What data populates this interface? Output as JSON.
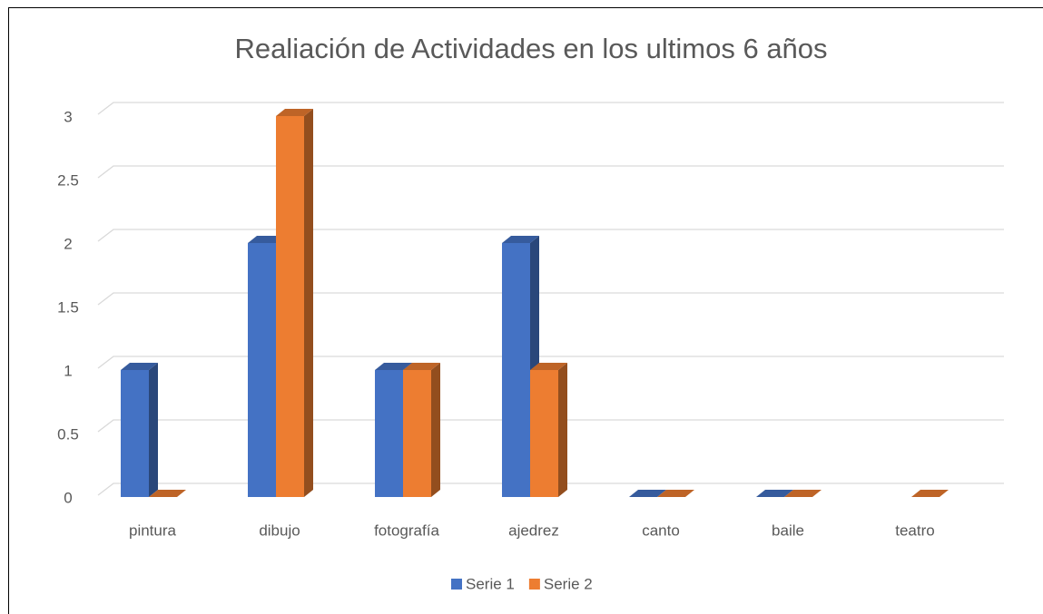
{
  "chart_data": {
    "type": "bar3d",
    "title": "Realiación de Actividades en los ultimos 6 años",
    "categories": [
      "pintura",
      "dibujo",
      "fotografía",
      "ajedrez",
      "canto",
      "baile",
      "teatro"
    ],
    "series": [
      {
        "name": "Serie 1",
        "color": "#4472c4",
        "values": [
          1,
          2,
          1,
          2,
          0,
          0,
          null
        ]
      },
      {
        "name": "Serie 2",
        "color": "#ed7d31",
        "values": [
          0,
          3,
          1,
          1,
          0,
          0,
          0
        ]
      }
    ],
    "ylim": [
      0,
      3
    ],
    "yticks": [
      0,
      0.5,
      1,
      1.5,
      2,
      2.5,
      3
    ],
    "grid": true,
    "legend": "bottom"
  }
}
